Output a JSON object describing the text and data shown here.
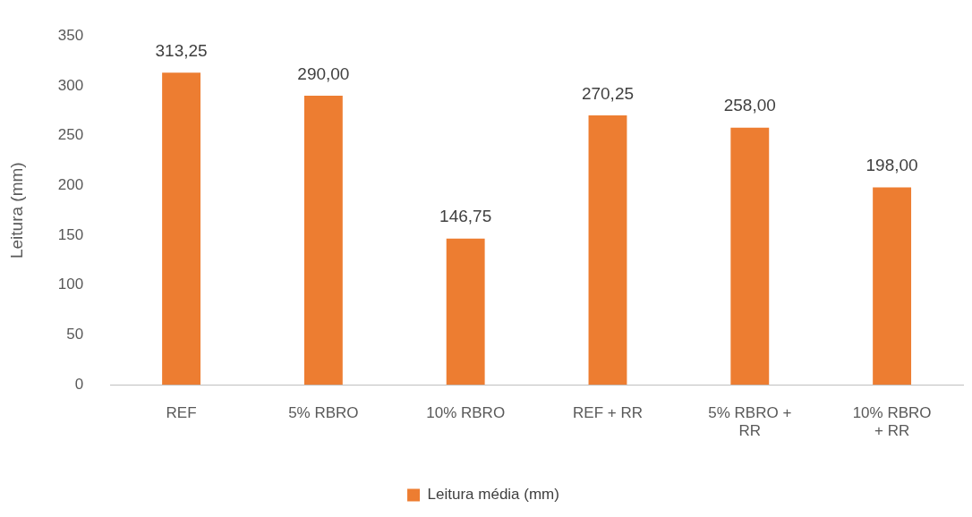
{
  "chart_data": {
    "type": "bar",
    "ylabel": "Leitura (mm)",
    "categories": [
      "REF",
      "5% RBRO",
      "10% RBRO",
      "REF + RR",
      "5% RBRO + RR",
      "10% RBRO + RR"
    ],
    "series": [
      {
        "name": "Leitura média (mm)",
        "color": "#ed7d31",
        "values": [
          313.25,
          290.0,
          146.75,
          270.25,
          258.0,
          198.0
        ],
        "value_labels": [
          "313,25",
          "290,00",
          "146,75",
          "270,25",
          "258,00",
          "198,00"
        ]
      }
    ],
    "ylim": [
      0,
      350
    ],
    "yticks": [
      0,
      50,
      100,
      150,
      200,
      250,
      300,
      350
    ],
    "grid": false,
    "legend": "bottom"
  }
}
